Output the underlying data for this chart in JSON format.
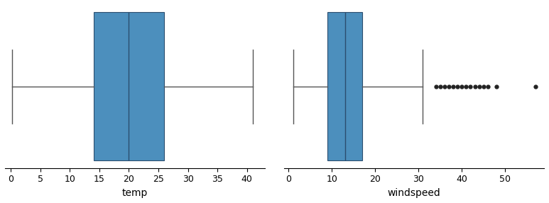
{
  "temp": {
    "q1": 14.0,
    "median": 20.0,
    "q3": 26.0,
    "whisker_low": 0.2,
    "whisker_high": 41.0,
    "outliers": [],
    "xlabel": "temp",
    "xlim": [
      -1,
      43
    ],
    "xticks": [
      0,
      5,
      10,
      15,
      20,
      25,
      30,
      35,
      40
    ]
  },
  "windspeed": {
    "q1": 9.0,
    "median": 13.0,
    "q3": 17.0,
    "whisker_low": 1.0,
    "whisker_high": 31.0,
    "outliers": [
      34,
      35,
      36,
      37,
      38,
      39,
      40,
      41,
      42,
      43,
      44,
      45,
      46,
      48,
      57
    ],
    "xlabel": "windspeed",
    "xlim": [
      -1,
      59
    ],
    "xticks": [
      0,
      10,
      20,
      30,
      40,
      50
    ]
  },
  "box_facecolor": "#4c8fbd",
  "median_color": "#2b4d6e",
  "whisker_color": "#555555",
  "outlier_color": "#222222",
  "figsize": [
    7.73,
    2.86
  ],
  "dpi": 100
}
